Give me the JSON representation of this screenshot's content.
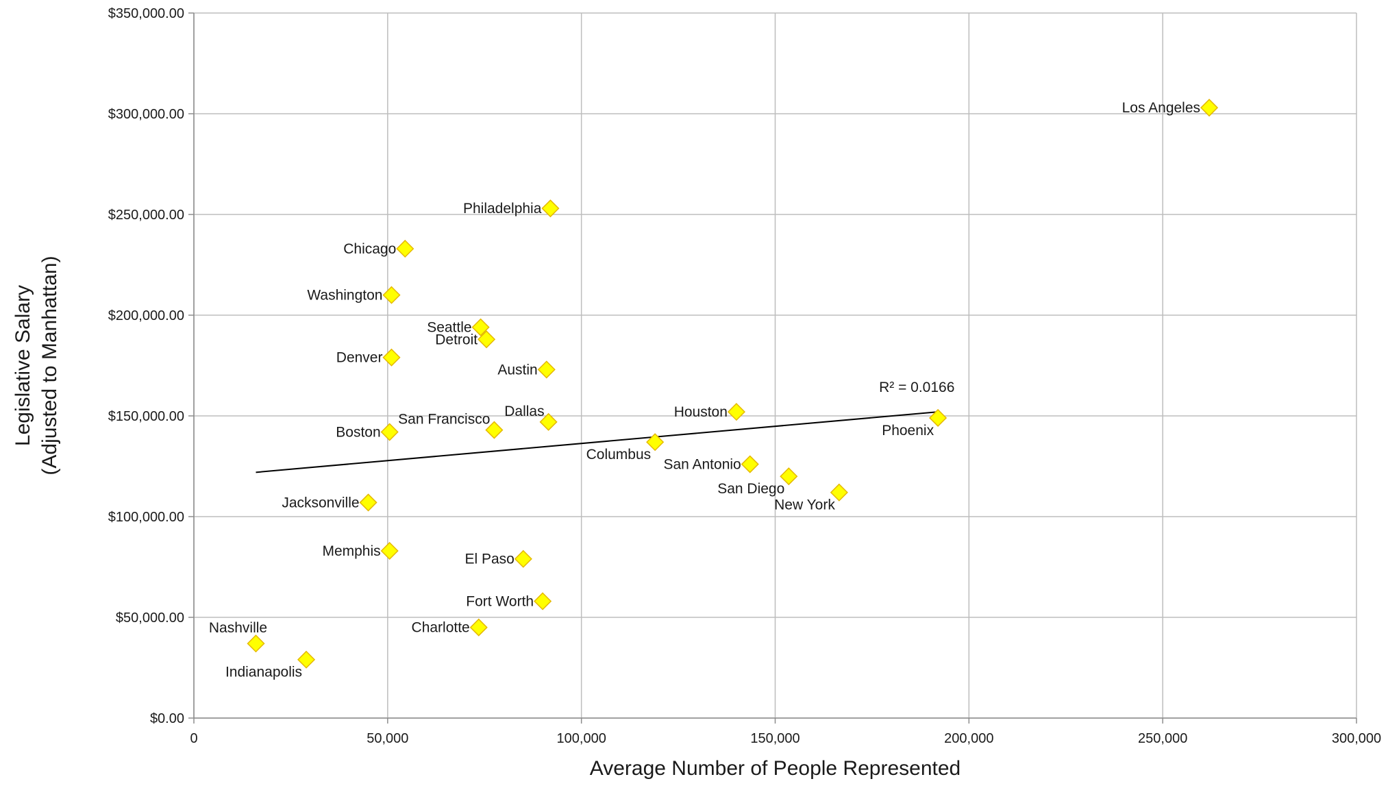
{
  "chart_data": {
    "type": "scatter",
    "title": "",
    "xlabel": "Average Number of People Represented",
    "ylabel_lines": [
      "Legislative Salary",
      "(Adjusted to Manhattan)"
    ],
    "xlim": [
      0,
      300000
    ],
    "ylim": [
      0,
      350000
    ],
    "x_ticks": [
      0,
      50000,
      100000,
      150000,
      200000,
      250000,
      300000
    ],
    "x_tick_labels": [
      "0",
      "50,000",
      "100,000",
      "150,000",
      "200,000",
      "250,000",
      "300,000"
    ],
    "y_ticks": [
      0,
      50000,
      100000,
      150000,
      200000,
      250000,
      300000,
      350000
    ],
    "y_tick_labels": [
      "$0.00",
      "$50,000.00",
      "$100,000.00",
      "$150,000.00",
      "$200,000.00",
      "$250,000.00",
      "$300,000.00",
      "$350,000.00"
    ],
    "grid": true,
    "marker": {
      "shape": "diamond",
      "fill": "#FFFF00",
      "stroke": "#E5B800"
    },
    "points": [
      {
        "label": "Los Angeles",
        "x": 262000,
        "y": 303000,
        "label_side": "left"
      },
      {
        "label": "Philadelphia",
        "x": 92000,
        "y": 253000,
        "label_side": "left"
      },
      {
        "label": "Chicago",
        "x": 54500,
        "y": 233000,
        "label_side": "left"
      },
      {
        "label": "Washington",
        "x": 51000,
        "y": 210000,
        "label_side": "left"
      },
      {
        "label": "Seattle",
        "x": 74000,
        "y": 194000,
        "label_side": "left"
      },
      {
        "label": "Detroit",
        "x": 75500,
        "y": 188000,
        "label_side": "left"
      },
      {
        "label": "Denver",
        "x": 51000,
        "y": 179000,
        "label_side": "left"
      },
      {
        "label": "Austin",
        "x": 91000,
        "y": 173000,
        "label_side": "left"
      },
      {
        "label": "Houston",
        "x": 140000,
        "y": 152000,
        "label_side": "left"
      },
      {
        "label": "Phoenix",
        "x": 192000,
        "y": 149000,
        "label_side": "below-left"
      },
      {
        "label": "Dallas",
        "x": 91500,
        "y": 147000,
        "label_side": "above-left"
      },
      {
        "label": "San Francisco",
        "x": 77500,
        "y": 143000,
        "label_side": "above-left"
      },
      {
        "label": "Boston",
        "x": 50500,
        "y": 142000,
        "label_side": "left"
      },
      {
        "label": "Columbus",
        "x": 119000,
        "y": 137000,
        "label_side": "below-left"
      },
      {
        "label": "San Antonio",
        "x": 143500,
        "y": 126000,
        "label_side": "left"
      },
      {
        "label": "San Diego",
        "x": 153500,
        "y": 120000,
        "label_side": "below-left"
      },
      {
        "label": "New York",
        "x": 166500,
        "y": 112000,
        "label_side": "below-left"
      },
      {
        "label": "Jacksonville",
        "x": 45000,
        "y": 107000,
        "label_side": "left"
      },
      {
        "label": "Memphis",
        "x": 50500,
        "y": 83000,
        "label_side": "left"
      },
      {
        "label": "El Paso",
        "x": 85000,
        "y": 79000,
        "label_side": "left"
      },
      {
        "label": "Fort Worth",
        "x": 90000,
        "y": 58000,
        "label_side": "left"
      },
      {
        "label": "Charlotte",
        "x": 73500,
        "y": 45000,
        "label_side": "left"
      },
      {
        "label": "Nashville",
        "x": 16000,
        "y": 37000,
        "label_side": "above"
      },
      {
        "label": "Indianapolis",
        "x": 29000,
        "y": 29000,
        "label_side": "below-left"
      }
    ],
    "trendline": {
      "type": "linear",
      "x_range": [
        16000,
        192000
      ],
      "y_start": 122000,
      "y_end": 152000,
      "r_squared_label": "R² = 0.0166"
    }
  }
}
